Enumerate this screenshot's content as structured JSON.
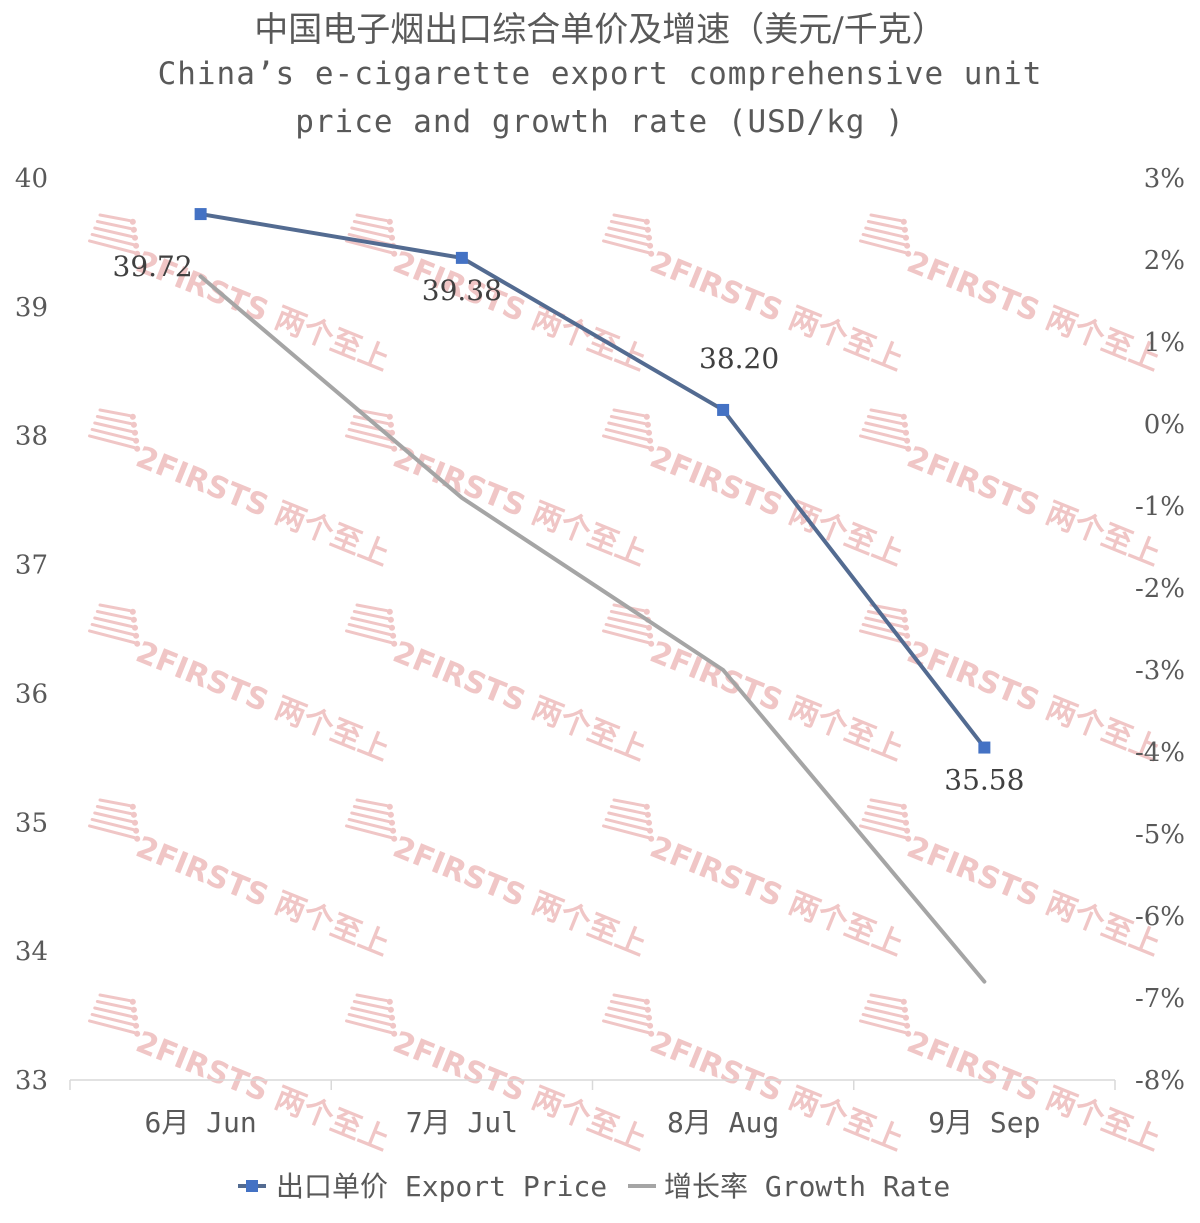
{
  "title": {
    "zh": "中国电子烟出口综合单价及增速（美元/千克）",
    "en": "China’s e-cigarette export comprehensive unit price and growth rate (USD/kg )"
  },
  "watermark": "2FIRSTS 两个至上",
  "chart_data": {
    "type": "line",
    "categories": [
      "6月 Jun",
      "7月 Jul",
      "8月 Aug",
      "9月 Sep"
    ],
    "series": [
      {
        "name": "出口单价 Export Price",
        "axis": "left",
        "values": [
          39.72,
          39.38,
          38.2,
          35.58
        ],
        "labels": [
          "39.72",
          "39.38",
          "38.20",
          "35.58"
        ],
        "color": "#536b91",
        "marker": "square",
        "marker_color": "#4472c4"
      },
      {
        "name": "增长率 Growth Rate",
        "axis": "right",
        "values": [
          1.8,
          -0.9,
          -3.0,
          -6.8
        ],
        "color": "#a5a5a5",
        "marker": "none"
      }
    ],
    "y_left": {
      "ylim": [
        33,
        40
      ],
      "ticks": [
        "33",
        "34",
        "35",
        "36",
        "37",
        "38",
        "39",
        "40"
      ]
    },
    "y_right": {
      "ylim": [
        -8,
        3
      ],
      "ticks": [
        "-8%",
        "-7%",
        "-6%",
        "-5%",
        "-4%",
        "-3%",
        "-2%",
        "-1%",
        "0%",
        "1%",
        "2%",
        "3%"
      ]
    },
    "grid": false,
    "legend_position": "bottom"
  }
}
